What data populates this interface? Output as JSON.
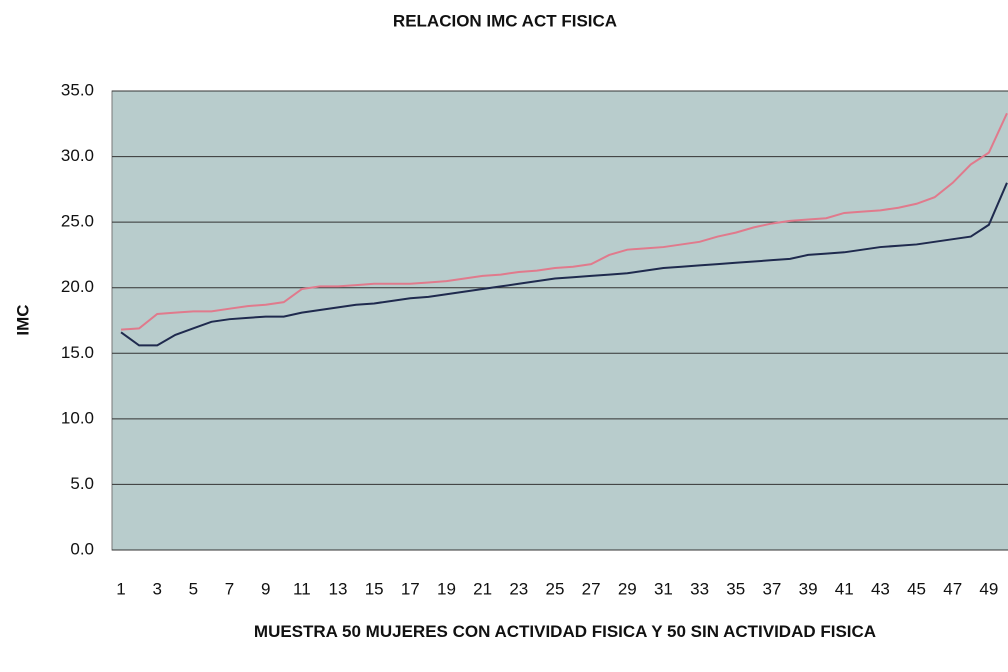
{
  "chart_data": {
    "type": "line",
    "title": "RELACION IMC ACT FISICA",
    "xlabel": "MUESTRA 50 MUJERES CON ACTIVIDAD FISICA Y 50 SIN ACTIVIDAD FISICA",
    "ylabel": "IMC",
    "categories": [
      "1",
      null,
      "3",
      null,
      "5",
      null,
      "7",
      null,
      "9",
      null,
      "11",
      null,
      "13",
      null,
      "15",
      null,
      "17",
      null,
      "19",
      null,
      "21",
      null,
      "23",
      null,
      "25",
      null,
      "27",
      null,
      "29",
      null,
      "31",
      null,
      "33",
      null,
      "35",
      null,
      "37",
      null,
      "39",
      null,
      "41",
      null,
      "43",
      null,
      "45",
      null,
      "47",
      null,
      "49",
      null
    ],
    "series": [
      {
        "color": "#e07a8c",
        "values": [
          16.8,
          16.9,
          18.0,
          18.1,
          18.2,
          18.2,
          18.4,
          18.6,
          18.7,
          18.9,
          19.9,
          20.1,
          20.1,
          20.2,
          20.3,
          20.3,
          20.3,
          20.4,
          20.5,
          20.7,
          20.9,
          21.0,
          21.2,
          21.3,
          21.5,
          21.6,
          21.8,
          22.5,
          22.9,
          23.0,
          23.1,
          23.3,
          23.5,
          23.9,
          24.2,
          24.6,
          24.9,
          25.1,
          25.2,
          25.3,
          25.7,
          25.8,
          25.9,
          26.1,
          26.4,
          26.9,
          28.0,
          29.4,
          30.3,
          33.3
        ]
      },
      {
        "color": "#1f2a4e",
        "values": [
          16.6,
          15.6,
          15.6,
          16.4,
          16.9,
          17.4,
          17.6,
          17.7,
          17.8,
          17.8,
          18.1,
          18.3,
          18.5,
          18.7,
          18.8,
          19.0,
          19.2,
          19.3,
          19.5,
          19.7,
          19.9,
          20.1,
          20.3,
          20.5,
          20.7,
          20.8,
          20.9,
          21.0,
          21.1,
          21.3,
          21.5,
          21.6,
          21.7,
          21.8,
          21.9,
          22.0,
          22.1,
          22.2,
          22.5,
          22.6,
          22.7,
          22.9,
          23.1,
          23.2,
          23.3,
          23.5,
          23.7,
          23.9,
          24.8,
          28.0
        ]
      }
    ],
    "ylim": [
      0,
      35
    ],
    "yticks": [
      {
        "value": 0,
        "label": "0.0"
      },
      {
        "value": 5,
        "label": "5.0"
      },
      {
        "value": 10,
        "label": "10.0"
      },
      {
        "value": 15,
        "label": "15.0"
      },
      {
        "value": 20,
        "label": "20.0"
      },
      {
        "value": 25,
        "label": "25.0"
      },
      {
        "value": 30,
        "label": "30.0"
      },
      {
        "value": 35,
        "label": "35.0"
      }
    ],
    "grid": true,
    "plot_background": "#b8cccc"
  }
}
